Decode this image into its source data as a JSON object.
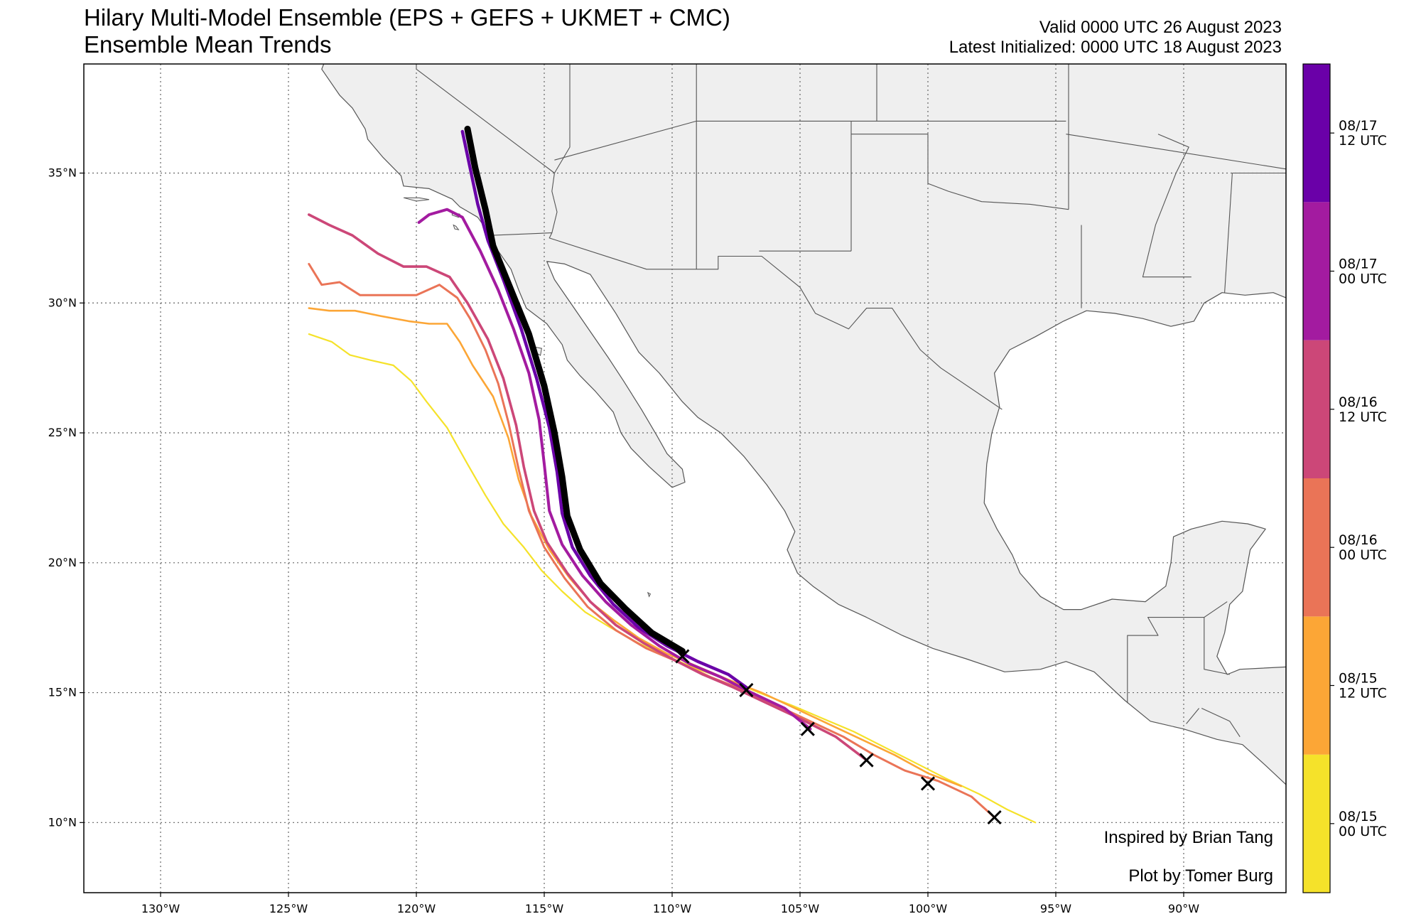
{
  "header": {
    "title_line1": "Hilary Multi-Model Ensemble (EPS + GEFS + UKMET + CMC)",
    "title_line2": "Ensemble Mean Trends",
    "valid_line": "Valid 0000 UTC 26 August 2023",
    "init_line": "Latest Initialized: 0000 UTC 18 August 2023"
  },
  "credits": {
    "inspired": "Inspired by Brian Tang",
    "plot_by": "Plot by Tomer Burg"
  },
  "map": {
    "lon_range": [
      -133,
      -86
    ],
    "lat_range": [
      7.3,
      39.2
    ],
    "lon_ticks": [
      {
        "value": -130,
        "label": "130°W"
      },
      {
        "value": -125,
        "label": "125°W"
      },
      {
        "value": -120,
        "label": "120°W"
      },
      {
        "value": -115,
        "label": "115°W"
      },
      {
        "value": -110,
        "label": "110°W"
      },
      {
        "value": -105,
        "label": "105°W"
      },
      {
        "value": -100,
        "label": "100°W"
      },
      {
        "value": -95,
        "label": "95°W"
      },
      {
        "value": -90,
        "label": "90°W"
      }
    ],
    "lat_ticks": [
      {
        "value": 35,
        "label": "35°N"
      },
      {
        "value": 30,
        "label": "30°N"
      },
      {
        "value": 25,
        "label": "25°N"
      },
      {
        "value": 20,
        "label": "20°N"
      },
      {
        "value": 15,
        "label": "15°N"
      },
      {
        "value": 10,
        "label": "10°N"
      }
    ],
    "land_color": "#efefef",
    "ocean_color": "#ffffff",
    "grid": true
  },
  "colorbar": {
    "entries": [
      {
        "line1": "08/15",
        "line2": "00 UTC",
        "color": "#f5e22a"
      },
      {
        "line1": "08/15",
        "line2": "12 UTC",
        "color": "#fca636"
      },
      {
        "line1": "08/16",
        "line2": "00 UTC",
        "color": "#ea7457"
      },
      {
        "line1": "08/16",
        "line2": "12 UTC",
        "color": "#cc4778"
      },
      {
        "line1": "08/17",
        "line2": "00 UTC",
        "color": "#a31ba0"
      },
      {
        "line1": "08/17",
        "line2": "12 UTC",
        "color": "#6a00a8"
      }
    ]
  },
  "tracks": [
    {
      "init": "08/15 00 UTC",
      "color": "#f5e22a",
      "width": 2.2,
      "points": [
        [
          -124.2,
          28.8
        ],
        [
          -123.3,
          28.5
        ],
        [
          -122.6,
          28.0
        ],
        [
          -121.8,
          27.8
        ],
        [
          -120.9,
          27.6
        ],
        [
          -120.2,
          27.0
        ],
        [
          -119.6,
          26.2
        ],
        [
          -118.8,
          25.2
        ],
        [
          -118.0,
          23.8
        ],
        [
          -117.3,
          22.6
        ],
        [
          -116.6,
          21.5
        ],
        [
          -115.8,
          20.6
        ],
        [
          -115.1,
          19.7
        ],
        [
          -114.3,
          18.9
        ],
        [
          -113.4,
          18.1
        ],
        [
          -112.4,
          17.5
        ],
        [
          -111.3,
          16.9
        ],
        [
          -110.2,
          16.4
        ],
        [
          -109.0,
          15.9
        ],
        [
          -107.8,
          15.5
        ],
        [
          -106.6,
          15.0
        ],
        [
          -105.3,
          14.5
        ],
        [
          -104.1,
          14.0
        ],
        [
          -102.9,
          13.5
        ],
        [
          -101.7,
          12.9
        ],
        [
          -100.5,
          12.3
        ],
        [
          -99.3,
          11.7
        ],
        [
          -98.0,
          11.1
        ],
        [
          -96.9,
          10.5
        ],
        [
          -95.8,
          10.0
        ]
      ]
    },
    {
      "init": "08/15 12 UTC",
      "color": "#fca636",
      "width": 2.6,
      "points": [
        [
          -124.2,
          29.8
        ],
        [
          -123.4,
          29.7
        ],
        [
          -122.4,
          29.7
        ],
        [
          -121.4,
          29.5
        ],
        [
          -120.3,
          29.3
        ],
        [
          -119.5,
          29.2
        ],
        [
          -118.8,
          29.2
        ],
        [
          -118.3,
          28.5
        ],
        [
          -117.8,
          27.6
        ],
        [
          -117.0,
          26.4
        ],
        [
          -116.4,
          24.8
        ],
        [
          -116.0,
          23.2
        ],
        [
          -115.5,
          21.8
        ],
        [
          -114.8,
          20.5
        ],
        [
          -114.0,
          19.4
        ],
        [
          -113.2,
          18.5
        ],
        [
          -112.3,
          17.8
        ],
        [
          -111.3,
          17.1
        ],
        [
          -110.2,
          16.5
        ],
        [
          -109.0,
          16.0
        ],
        [
          -107.8,
          15.5
        ],
        [
          -106.5,
          15.0
        ],
        [
          -105.2,
          14.4
        ],
        [
          -103.9,
          13.8
        ],
        [
          -102.6,
          13.2
        ],
        [
          -101.3,
          12.6
        ],
        [
          -100.0,
          11.9
        ],
        [
          -98.7,
          11.4
        ]
      ]
    },
    {
      "init": "08/16 00 UTC",
      "color": "#ea7457",
      "width": 3.0,
      "points": [
        [
          -124.2,
          31.5
        ],
        [
          -123.7,
          30.7
        ],
        [
          -123.0,
          30.8
        ],
        [
          -122.2,
          30.3
        ],
        [
          -121.0,
          30.3
        ],
        [
          -120.0,
          30.3
        ],
        [
          -119.1,
          30.7
        ],
        [
          -118.4,
          30.2
        ],
        [
          -117.9,
          29.4
        ],
        [
          -117.3,
          28.2
        ],
        [
          -116.8,
          26.9
        ],
        [
          -116.4,
          25.4
        ],
        [
          -116.0,
          23.6
        ],
        [
          -115.6,
          22.0
        ],
        [
          -115.0,
          20.6
        ],
        [
          -114.2,
          19.4
        ],
        [
          -113.3,
          18.3
        ],
        [
          -112.2,
          17.4
        ],
        [
          -111.0,
          16.7
        ],
        [
          -109.8,
          16.2
        ],
        [
          -108.5,
          15.6
        ],
        [
          -107.2,
          15.1
        ],
        [
          -105.9,
          14.5
        ],
        [
          -104.6,
          13.9
        ],
        [
          -103.3,
          13.3
        ],
        [
          -102.1,
          12.6
        ],
        [
          -100.9,
          12.0
        ],
        [
          -99.6,
          11.6
        ],
        [
          -98.3,
          11.0
        ],
        [
          -97.4,
          10.2
        ]
      ]
    },
    {
      "init": "08/16 12 UTC",
      "color": "#cc4778",
      "width": 3.6,
      "points": [
        [
          -124.2,
          33.4
        ],
        [
          -123.4,
          33.0
        ],
        [
          -122.5,
          32.6
        ],
        [
          -121.5,
          31.9
        ],
        [
          -120.5,
          31.4
        ],
        [
          -119.6,
          31.4
        ],
        [
          -118.7,
          31.0
        ],
        [
          -118.0,
          30.0
        ],
        [
          -117.2,
          28.6
        ],
        [
          -116.6,
          27.1
        ],
        [
          -116.1,
          25.3
        ],
        [
          -115.8,
          23.7
        ],
        [
          -115.4,
          22.0
        ],
        [
          -114.9,
          20.8
        ],
        [
          -114.1,
          19.6
        ],
        [
          -113.2,
          18.5
        ],
        [
          -112.2,
          17.6
        ],
        [
          -111.1,
          16.9
        ],
        [
          -110.0,
          16.3
        ],
        [
          -108.8,
          15.7
        ],
        [
          -107.6,
          15.2
        ],
        [
          -106.3,
          14.6
        ],
        [
          -105.0,
          14.0
        ],
        [
          -103.6,
          13.3
        ],
        [
          -102.4,
          12.4
        ]
      ]
    },
    {
      "init": "08/17 00 UTC",
      "color": "#a31ba0",
      "width": 4.0,
      "points": [
        [
          -119.9,
          33.1
        ],
        [
          -119.5,
          33.4
        ],
        [
          -118.8,
          33.6
        ],
        [
          -118.2,
          33.3
        ],
        [
          -117.5,
          32.0
        ],
        [
          -116.8,
          30.5
        ],
        [
          -116.2,
          29.0
        ],
        [
          -115.6,
          27.3
        ],
        [
          -115.2,
          25.5
        ],
        [
          -115.0,
          23.8
        ],
        [
          -114.8,
          22.0
        ],
        [
          -114.3,
          20.7
        ],
        [
          -113.5,
          19.5
        ],
        [
          -112.6,
          18.5
        ],
        [
          -111.6,
          17.6
        ],
        [
          -110.5,
          16.8
        ],
        [
          -109.3,
          16.1
        ],
        [
          -108.1,
          15.6
        ],
        [
          -106.9,
          15.0
        ],
        [
          -105.6,
          14.4
        ],
        [
          -104.6,
          13.6
        ]
      ]
    },
    {
      "init": "08/17 12 UTC",
      "color": "#6a00a8",
      "width": 4.4,
      "points": [
        [
          -118.2,
          36.6
        ],
        [
          -117.9,
          35.2
        ],
        [
          -117.6,
          33.8
        ],
        [
          -117.2,
          32.4
        ],
        [
          -116.6,
          30.9
        ],
        [
          -115.9,
          29.0
        ],
        [
          -115.3,
          27.1
        ],
        [
          -114.8,
          25.2
        ],
        [
          -114.5,
          23.5
        ],
        [
          -114.3,
          21.9
        ],
        [
          -113.9,
          20.6
        ],
        [
          -113.2,
          19.5
        ],
        [
          -112.3,
          18.4
        ],
        [
          -111.3,
          17.5
        ],
        [
          -110.2,
          16.8
        ],
        [
          -109.0,
          16.2
        ],
        [
          -107.8,
          15.7
        ],
        [
          -107.1,
          15.2
        ]
      ]
    },
    {
      "init": "08/18 00 UTC",
      "color": "#000000",
      "width": 9,
      "points": [
        [
          -118.0,
          36.7
        ],
        [
          -117.7,
          35.2
        ],
        [
          -117.3,
          33.6
        ],
        [
          -117.0,
          32.2
        ],
        [
          -116.3,
          30.5
        ],
        [
          -115.6,
          28.8
        ],
        [
          -115.0,
          26.8
        ],
        [
          -114.6,
          25.0
        ],
        [
          -114.3,
          23.3
        ],
        [
          -114.1,
          21.8
        ],
        [
          -113.6,
          20.5
        ],
        [
          -112.8,
          19.2
        ],
        [
          -111.8,
          18.2
        ],
        [
          -110.8,
          17.3
        ],
        [
          -109.6,
          16.6
        ]
      ]
    }
  ],
  "initial_positions": [
    {
      "lon": -97.4,
      "lat": 10.2
    },
    {
      "lon": -100.0,
      "lat": 11.5
    },
    {
      "lon": -102.4,
      "lat": 12.4
    },
    {
      "lon": -104.7,
      "lat": 13.6
    },
    {
      "lon": -107.1,
      "lat": 15.1
    },
    {
      "lon": -109.6,
      "lat": 16.4
    }
  ]
}
